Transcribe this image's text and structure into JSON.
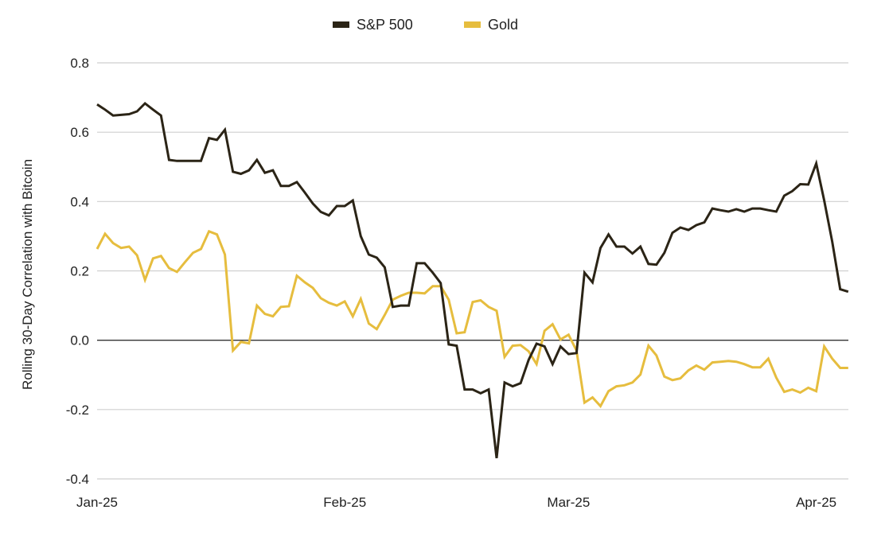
{
  "chart_data": {
    "type": "line",
    "title": "",
    "xlabel": "",
    "ylabel": "Rolling 30-Day Correlation with Bitcoin",
    "ylim": [
      -0.4,
      0.8
    ],
    "yticks": [
      0.8,
      0.6,
      0.4,
      0.2,
      0.0,
      -0.2,
      -0.4
    ],
    "ytick_labels": [
      "0.8",
      "0.6",
      "0.4",
      "0.2",
      "0.0",
      "-0.2",
      "-0.4"
    ],
    "xticks": [
      {
        "date": "2025-01-01",
        "label": "Jan-25"
      },
      {
        "date": "2025-02-01",
        "label": "Feb-25"
      },
      {
        "date": "2025-03-01",
        "label": "Mar-25"
      },
      {
        "date": "2025-04-01",
        "label": "Apr-25"
      }
    ],
    "grid": "horizontal",
    "legend": "top-center",
    "x": [
      "2025-01-01",
      "2025-01-02",
      "2025-01-03",
      "2025-01-04",
      "2025-01-05",
      "2025-01-06",
      "2025-01-07",
      "2025-01-08",
      "2025-01-09",
      "2025-01-10",
      "2025-01-11",
      "2025-01-12",
      "2025-01-13",
      "2025-01-14",
      "2025-01-15",
      "2025-01-16",
      "2025-01-17",
      "2025-01-18",
      "2025-01-19",
      "2025-01-20",
      "2025-01-21",
      "2025-01-22",
      "2025-01-23",
      "2025-01-24",
      "2025-01-25",
      "2025-01-26",
      "2025-01-27",
      "2025-01-28",
      "2025-01-29",
      "2025-01-30",
      "2025-01-31",
      "2025-02-01",
      "2025-02-02",
      "2025-02-03",
      "2025-02-04",
      "2025-02-05",
      "2025-02-06",
      "2025-02-07",
      "2025-02-08",
      "2025-02-09",
      "2025-02-10",
      "2025-02-11",
      "2025-02-12",
      "2025-02-13",
      "2025-02-14",
      "2025-02-15",
      "2025-02-16",
      "2025-02-17",
      "2025-02-18",
      "2025-02-19",
      "2025-02-20",
      "2025-02-21",
      "2025-02-22",
      "2025-02-23",
      "2025-02-24",
      "2025-02-25",
      "2025-02-26",
      "2025-02-27",
      "2025-02-28",
      "2025-03-01",
      "2025-03-02",
      "2025-03-03",
      "2025-03-04",
      "2025-03-05",
      "2025-03-06",
      "2025-03-07",
      "2025-03-08",
      "2025-03-09",
      "2025-03-10",
      "2025-03-11",
      "2025-03-12",
      "2025-03-13",
      "2025-03-14",
      "2025-03-15",
      "2025-03-16",
      "2025-03-17",
      "2025-03-18",
      "2025-03-19",
      "2025-03-20",
      "2025-03-21",
      "2025-03-22",
      "2025-03-23",
      "2025-03-24",
      "2025-03-25",
      "2025-03-26",
      "2025-03-27",
      "2025-03-28",
      "2025-03-29",
      "2025-03-30",
      "2025-03-31",
      "2025-04-01",
      "2025-04-02",
      "2025-04-03",
      "2025-04-04",
      "2025-04-05"
    ],
    "series": [
      {
        "name": "S&P 500",
        "color": "#2b2416",
        "values": [
          0.68,
          0.665,
          0.648,
          0.65,
          0.652,
          0.66,
          0.683,
          0.665,
          0.648,
          0.52,
          0.517,
          0.517,
          0.517,
          0.517,
          0.583,
          0.578,
          0.607,
          0.486,
          0.48,
          0.49,
          0.52,
          0.483,
          0.49,
          0.445,
          0.445,
          0.456,
          0.426,
          0.394,
          0.37,
          0.36,
          0.387,
          0.387,
          0.403,
          0.3,
          0.247,
          0.238,
          0.21,
          0.096,
          0.1,
          0.1,
          0.222,
          0.222,
          0.195,
          0.165,
          -0.012,
          -0.016,
          -0.142,
          -0.142,
          -0.153,
          -0.142,
          -0.34,
          -0.122,
          -0.133,
          -0.124,
          -0.057,
          -0.01,
          -0.018,
          -0.069,
          -0.018,
          -0.04,
          -0.037,
          0.195,
          0.167,
          0.266,
          0.305,
          0.27,
          0.27,
          0.25,
          0.27,
          0.22,
          0.218,
          0.252,
          0.31,
          0.325,
          0.318,
          0.332,
          0.34,
          0.38,
          0.375,
          0.371,
          0.378,
          0.371,
          0.38,
          0.38,
          0.375,
          0.371,
          0.417,
          0.43,
          0.45,
          0.449,
          0.51,
          0.403,
          0.284,
          0.147,
          0.14
        ]
      },
      {
        "name": "Gold",
        "color": "#e6bd3e",
        "values": [
          0.263,
          0.307,
          0.28,
          0.266,
          0.27,
          0.245,
          0.174,
          0.236,
          0.243,
          0.208,
          0.197,
          0.225,
          0.252,
          0.263,
          0.314,
          0.305,
          0.247,
          -0.03,
          -0.005,
          -0.009,
          0.1,
          0.076,
          0.069,
          0.096,
          0.098,
          0.186,
          0.167,
          0.151,
          0.121,
          0.108,
          0.1,
          0.112,
          0.069,
          0.119,
          0.048,
          0.032,
          0.073,
          0.117,
          0.128,
          0.137,
          0.137,
          0.135,
          0.156,
          0.156,
          0.117,
          0.02,
          0.023,
          0.11,
          0.115,
          0.096,
          0.085,
          -0.048,
          -0.016,
          -0.014,
          -0.032,
          -0.069,
          0.027,
          0.046,
          0.002,
          0.016,
          -0.03,
          -0.18,
          -0.165,
          -0.19,
          -0.147,
          -0.133,
          -0.13,
          -0.122,
          -0.099,
          -0.016,
          -0.044,
          -0.105,
          -0.115,
          -0.11,
          -0.087,
          -0.073,
          -0.085,
          -0.064,
          -0.062,
          -0.06,
          -0.062,
          -0.069,
          -0.078,
          -0.078,
          -0.053,
          -0.108,
          -0.149,
          -0.142,
          -0.151,
          -0.137,
          -0.147,
          -0.018,
          -0.053,
          -0.08,
          -0.08
        ]
      }
    ]
  }
}
